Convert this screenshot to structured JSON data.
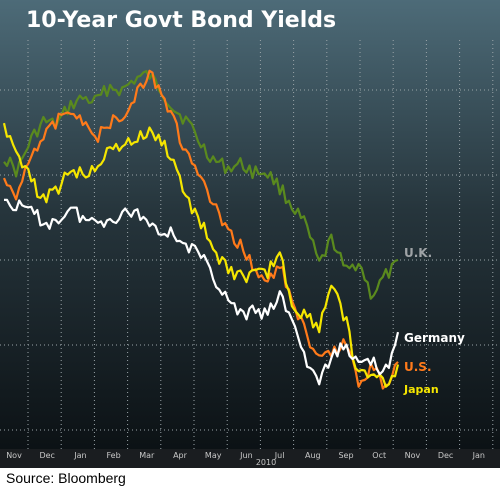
{
  "source": "Source: Bloomberg",
  "colors": {
    "background_top": "#4d6b78",
    "background_bottom": "#0a0f12",
    "uk": "#5a8a1e",
    "germany": "#ffffff",
    "us": "#ff7a1a",
    "japan": "#f5e600"
  },
  "chart_data": {
    "type": "line",
    "title": "10-Year Govt Bond Yields",
    "x_ticks": [
      "Nov",
      "Dec",
      "Jan",
      "Feb",
      "Mar",
      "Apr",
      "May",
      "Jun",
      "Jul",
      "Aug",
      "Sep",
      "Oct",
      "Nov",
      "Dec",
      "Jan"
    ],
    "year_label": "2010",
    "ylim": [
      0,
      1
    ],
    "grid": true,
    "legend": "inline-right",
    "series": [
      {
        "name": "U.K.",
        "color": "#5a8a1e",
        "values": [
          0.7,
          0.66,
          0.74,
          0.79,
          0.78,
          0.83,
          0.85,
          0.84,
          0.88,
          0.87,
          0.9,
          0.91,
          0.87,
          0.82,
          0.79,
          0.73,
          0.69,
          0.67,
          0.68,
          0.66,
          0.66,
          0.62,
          0.57,
          0.52,
          0.42,
          0.49,
          0.4,
          0.43,
          0.34,
          0.39,
          0.42
        ]
      },
      {
        "name": "Germany",
        "color": "#ffffff",
        "values": [
          0.59,
          0.57,
          0.56,
          0.53,
          0.53,
          0.57,
          0.54,
          0.53,
          0.54,
          0.55,
          0.56,
          0.53,
          0.51,
          0.5,
          0.47,
          0.44,
          0.39,
          0.33,
          0.29,
          0.3,
          0.29,
          0.34,
          0.28,
          0.17,
          0.12,
          0.18,
          0.22,
          0.16,
          0.18,
          0.14,
          0.23
        ]
      },
      {
        "name": "U.S.",
        "color": "#ff7a1a",
        "values": [
          0.63,
          0.6,
          0.71,
          0.75,
          0.79,
          0.83,
          0.78,
          0.75,
          0.78,
          0.81,
          0.85,
          0.92,
          0.87,
          0.78,
          0.7,
          0.64,
          0.57,
          0.5,
          0.47,
          0.42,
          0.37,
          0.42,
          0.33,
          0.24,
          0.17,
          0.2,
          0.22,
          0.12,
          0.16,
          0.1,
          0.18
        ]
      },
      {
        "name": "Japan",
        "color": "#f5e600",
        "values": [
          0.78,
          0.72,
          0.64,
          0.59,
          0.61,
          0.67,
          0.65,
          0.68,
          0.71,
          0.73,
          0.74,
          0.76,
          0.74,
          0.68,
          0.58,
          0.53,
          0.46,
          0.41,
          0.39,
          0.39,
          0.4,
          0.45,
          0.31,
          0.29,
          0.26,
          0.38,
          0.28,
          0.13,
          0.14,
          0.11,
          0.16
        ]
      }
    ]
  }
}
